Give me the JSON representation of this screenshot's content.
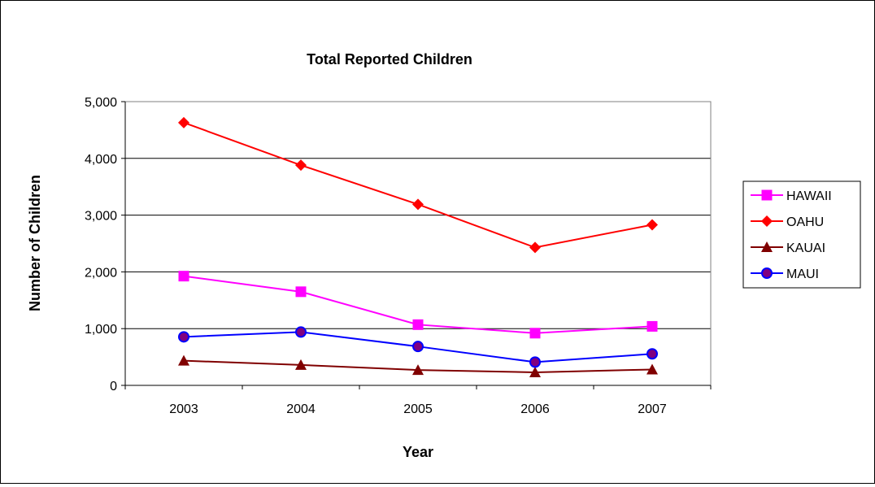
{
  "chart_data": {
    "type": "line",
    "title": "Total Reported Children",
    "xlabel": "Year",
    "ylabel": "Number of Children",
    "categories": [
      "2003",
      "2004",
      "2005",
      "2006",
      "2007"
    ],
    "ylim": [
      0,
      5000
    ],
    "yticks": [
      0,
      1000,
      2000,
      3000,
      4000,
      5000
    ],
    "ytick_labels": [
      "0",
      "1,000",
      "2,000",
      "3,000",
      "4,000",
      "5,000"
    ],
    "grid": "horizontal",
    "legend_position": "right",
    "series": [
      {
        "name": "HAWAII",
        "color": "#ff00ff",
        "marker": "square",
        "values": [
          1925,
          1650,
          1070,
          920,
          1040
        ]
      },
      {
        "name": "OAHU",
        "color": "#ff0000",
        "marker": "diamond",
        "values": [
          4630,
          3880,
          3190,
          2430,
          2830
        ]
      },
      {
        "name": "KAUAI",
        "color": "#800000",
        "marker": "triangle",
        "values": [
          435,
          360,
          270,
          230,
          280
        ]
      },
      {
        "name": "MAUI",
        "color": "#0000ff",
        "marker": "circle",
        "values": [
          855,
          940,
          685,
          410,
          555
        ]
      }
    ]
  }
}
